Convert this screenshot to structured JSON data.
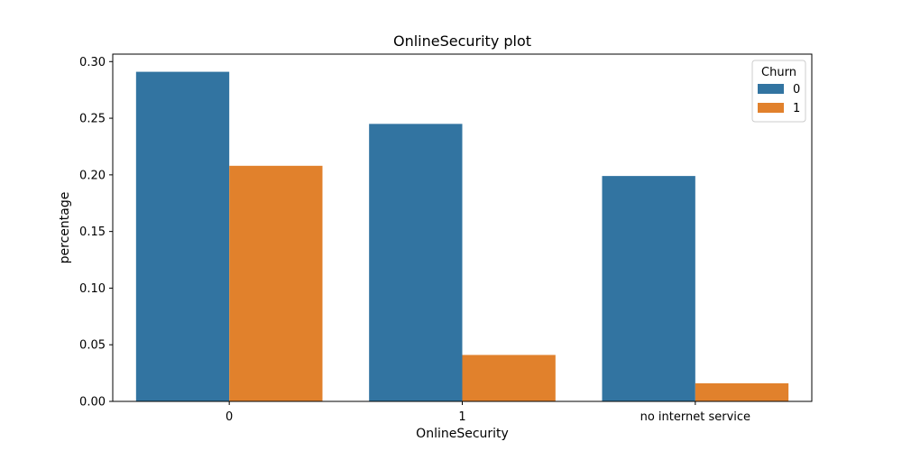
{
  "chart_data": {
    "type": "bar",
    "title": "OnlineSecurity plot",
    "xlabel": "OnlineSecurity",
    "ylabel": "percentage",
    "categories": [
      "0",
      "1",
      "no internet service"
    ],
    "series": [
      {
        "name": "0",
        "color": "#3274a1",
        "values": [
          0.291,
          0.245,
          0.199
        ]
      },
      {
        "name": "1",
        "color": "#e1812c",
        "values": [
          0.208,
          0.041,
          0.016
        ]
      }
    ],
    "ylim": [
      0,
      0.3066
    ],
    "yticks": [
      "0.00",
      "0.05",
      "0.10",
      "0.15",
      "0.20",
      "0.25",
      "0.30"
    ],
    "grid": false,
    "legend": {
      "title": "Churn",
      "placement": "top-right"
    }
  }
}
